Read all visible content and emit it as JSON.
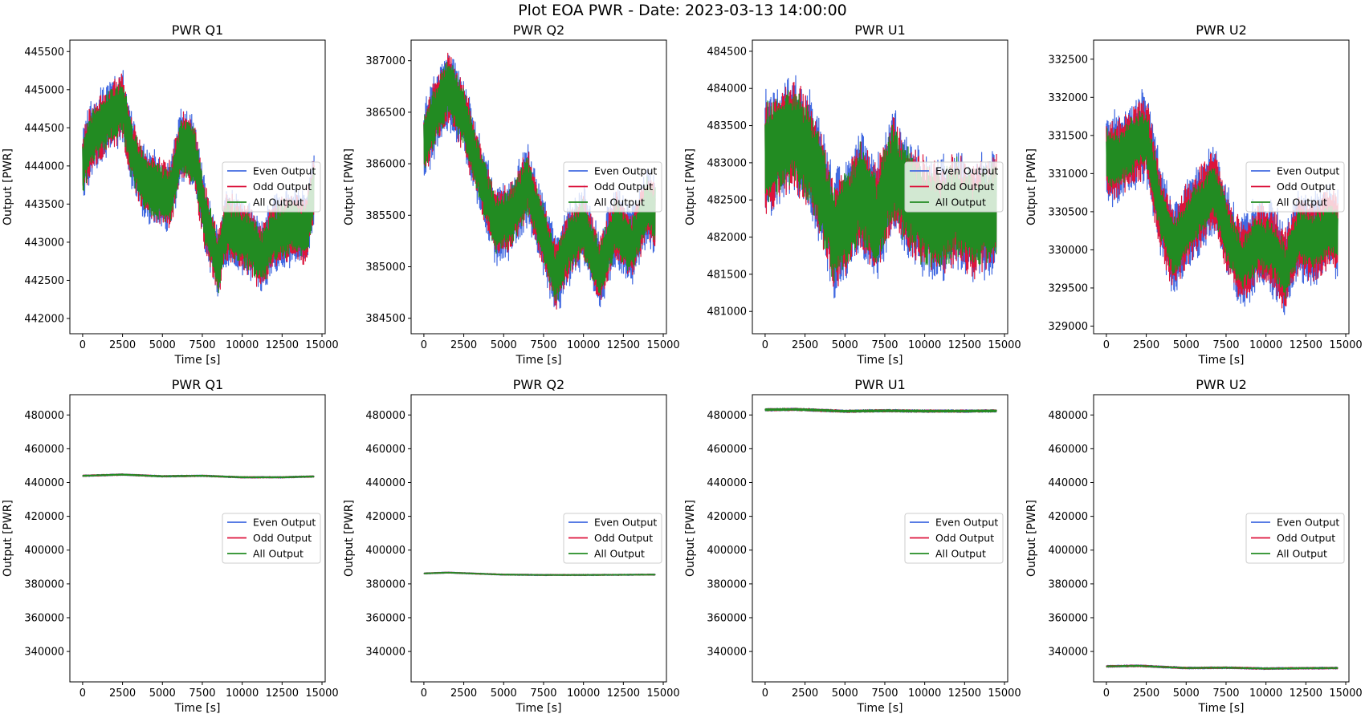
{
  "figure": {
    "suptitle": "Plot EOA PWR - Date: 2023-03-13 14:00:00"
  },
  "colors": {
    "even": "#4169e1",
    "odd": "#dc143c",
    "all": "#228b22"
  },
  "legend_entries": [
    {
      "key": "even",
      "label": "Even Output"
    },
    {
      "key": "odd",
      "label": "Odd Output"
    },
    {
      "key": "all",
      "label": "All Output"
    }
  ],
  "chart_data": [
    {
      "type": "line",
      "title": "PWR Q1",
      "xlabel": "Time [s]",
      "ylabel": "Output [PWR]",
      "xlim": [
        -800,
        15200
      ],
      "ylim": [
        441800,
        445650
      ],
      "xticks": [
        0,
        2500,
        5000,
        7500,
        10000,
        12500,
        15000
      ],
      "yticks": [
        442000,
        442500,
        443000,
        443500,
        444000,
        444500,
        445000,
        445500
      ],
      "legend": "center-right",
      "trend": {
        "x": [
          0,
          500,
          1500,
          2500,
          3000,
          3800,
          4500,
          5500,
          6200,
          7000,
          7700,
          8500,
          9000,
          9800,
          10500,
          11200,
          12000,
          13000,
          14000,
          14500
        ],
        "y": [
          444000,
          444350,
          444600,
          444800,
          444250,
          443800,
          443700,
          443600,
          444300,
          444150,
          443300,
          442700,
          443200,
          443100,
          443000,
          442800,
          443100,
          443200,
          443150,
          443700
        ]
      },
      "band": {
        "even": 480,
        "odd": 430,
        "all": 360
      }
    },
    {
      "type": "line",
      "title": "PWR Q2",
      "xlabel": "Time [s]",
      "ylabel": "Output [PWR]",
      "xlim": [
        -800,
        15200
      ],
      "ylim": [
        384350,
        387200
      ],
      "xticks": [
        0,
        2500,
        5000,
        7500,
        10000,
        12500,
        15000
      ],
      "yticks": [
        384500,
        385000,
        385500,
        386000,
        386500,
        387000
      ],
      "legend": "center-right",
      "trend": {
        "x": [
          0,
          500,
          1500,
          2500,
          3500,
          4500,
          5500,
          6500,
          7500,
          8300,
          9000,
          10000,
          11000,
          12000,
          13000,
          14000,
          14500
        ],
        "y": [
          386200,
          386400,
          386750,
          386450,
          385900,
          385400,
          385500,
          385800,
          385300,
          384900,
          385200,
          385400,
          384950,
          385400,
          385200,
          385600,
          385500
        ]
      },
      "band": {
        "even": 380,
        "odd": 320,
        "all": 270
      }
    },
    {
      "type": "line",
      "title": "PWR U1",
      "xlabel": "Time [s]",
      "ylabel": "Output [PWR]",
      "xlim": [
        -800,
        15200
      ],
      "ylim": [
        480700,
        484650
      ],
      "xticks": [
        0,
        2500,
        5000,
        7500,
        10000,
        12500,
        15000
      ],
      "yticks": [
        481000,
        481500,
        482000,
        482500,
        483000,
        483500,
        484000,
        484500
      ],
      "legend": "center-right",
      "trend": {
        "x": [
          0,
          800,
          1800,
          2800,
          3500,
          4300,
          5000,
          6000,
          7000,
          8000,
          9000,
          10000,
          11000,
          12000,
          13000,
          14000,
          14500
        ],
        "y": [
          483100,
          483200,
          483400,
          483100,
          482700,
          482000,
          482200,
          482600,
          482200,
          482900,
          482500,
          482300,
          482200,
          482400,
          482200,
          482300,
          482400
        ]
      },
      "band": {
        "even": 800,
        "odd": 720,
        "all": 640
      }
    },
    {
      "type": "line",
      "title": "PWR U2",
      "xlabel": "Time [s]",
      "ylabel": "Output [PWR]",
      "xlim": [
        -800,
        15200
      ],
      "ylim": [
        328900,
        332750
      ],
      "xticks": [
        0,
        2500,
        5000,
        7500,
        10000,
        12500,
        15000
      ],
      "yticks": [
        329000,
        329500,
        330000,
        330500,
        331000,
        331500,
        332000,
        332500
      ],
      "legend": "center-right",
      "trend": {
        "x": [
          0,
          800,
          1800,
          2500,
          3300,
          4200,
          5000,
          6000,
          6800,
          7600,
          8500,
          9500,
          10500,
          11200,
          12000,
          13000,
          14000,
          14500
        ],
        "y": [
          331200,
          331200,
          331400,
          331500,
          330600,
          330000,
          330300,
          330600,
          330800,
          330200,
          329800,
          330100,
          330000,
          329700,
          330200,
          330100,
          330300,
          330200
        ]
      },
      "band": {
        "even": 600,
        "odd": 520,
        "all": 360
      }
    },
    {
      "type": "line",
      "title": "PWR Q1",
      "xlabel": "Time [s]",
      "ylabel": "Output [PWR]",
      "xlim": [
        -800,
        15200
      ],
      "ylim": [
        322000,
        492000
      ],
      "xticks": [
        0,
        2500,
        5000,
        7500,
        10000,
        12500,
        15000
      ],
      "yticks": [
        340000,
        360000,
        380000,
        400000,
        420000,
        440000,
        460000,
        480000
      ],
      "legend": "center-right",
      "trend": {
        "x": [
          0,
          2500,
          5000,
          7500,
          10000,
          12500,
          14500
        ],
        "y": [
          444000,
          444700,
          443700,
          444000,
          443100,
          443100,
          443600
        ]
      },
      "band": {
        "even": 480,
        "odd": 430,
        "all": 360
      }
    },
    {
      "type": "line",
      "title": "PWR Q2",
      "xlabel": "Time [s]",
      "ylabel": "Output [PWR]",
      "xlim": [
        -800,
        15200
      ],
      "ylim": [
        322000,
        492000
      ],
      "xticks": [
        0,
        2500,
        5000,
        7500,
        10000,
        12500,
        15000
      ],
      "yticks": [
        340000,
        360000,
        380000,
        400000,
        420000,
        440000,
        460000,
        480000
      ],
      "legend": "center-right",
      "trend": {
        "x": [
          0,
          1500,
          5000,
          7500,
          10000,
          12500,
          14500
        ],
        "y": [
          386200,
          386700,
          385500,
          385300,
          385300,
          385400,
          385500
        ]
      },
      "band": {
        "even": 380,
        "odd": 320,
        "all": 270
      }
    },
    {
      "type": "line",
      "title": "PWR U1",
      "xlabel": "Time [s]",
      "ylabel": "Output [PWR]",
      "xlim": [
        -800,
        15200
      ],
      "ylim": [
        322000,
        492000
      ],
      "xticks": [
        0,
        2500,
        5000,
        7500,
        10000,
        12500,
        15000
      ],
      "yticks": [
        340000,
        360000,
        380000,
        400000,
        420000,
        440000,
        460000,
        480000
      ],
      "legend": "center-right",
      "trend": {
        "x": [
          0,
          2000,
          5000,
          7500,
          10000,
          12500,
          14500
        ],
        "y": [
          483100,
          483300,
          482200,
          482500,
          482300,
          482300,
          482400
        ]
      },
      "band": {
        "even": 800,
        "odd": 720,
        "all": 640
      }
    },
    {
      "type": "line",
      "title": "PWR U2",
      "xlabel": "Time [s]",
      "ylabel": "Output [PWR]",
      "xlim": [
        -800,
        15200
      ],
      "ylim": [
        322000,
        492000
      ],
      "xticks": [
        0,
        2500,
        5000,
        7500,
        10000,
        12500,
        15000
      ],
      "yticks": [
        340000,
        360000,
        380000,
        400000,
        420000,
        440000,
        460000,
        480000
      ],
      "legend": "center-right",
      "trend": {
        "x": [
          0,
          2000,
          5000,
          7500,
          10000,
          12500,
          14500
        ],
        "y": [
          331200,
          331500,
          330200,
          330400,
          329900,
          330100,
          330200
        ]
      },
      "band": {
        "even": 600,
        "odd": 520,
        "all": 360
      }
    }
  ]
}
